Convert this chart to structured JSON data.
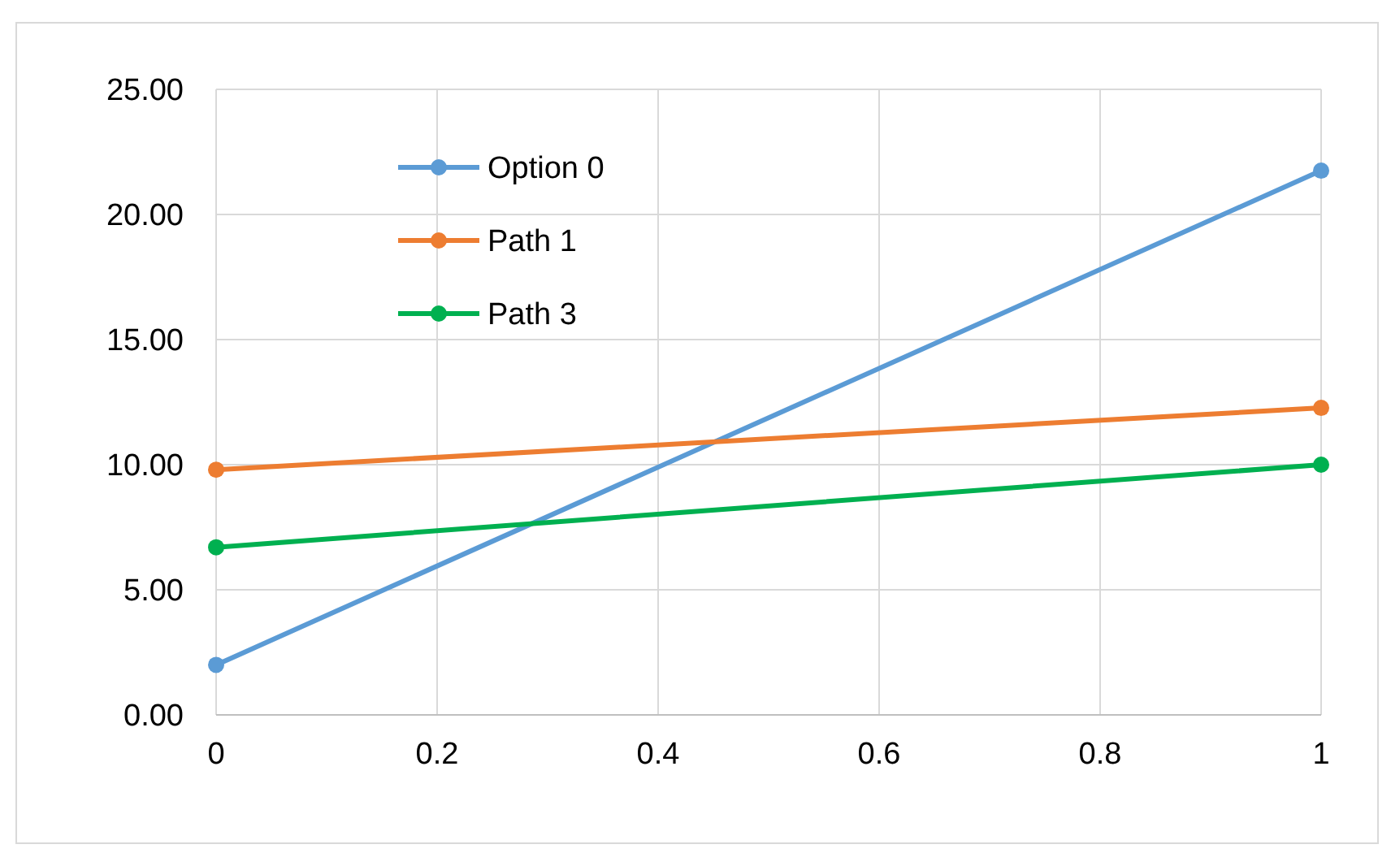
{
  "chart_data": {
    "type": "line",
    "x": [
      0,
      1
    ],
    "series": [
      {
        "name": "Option 0",
        "color": "#5b9bd5",
        "values": [
          2.0,
          21.75
        ]
      },
      {
        "name": "Path 1",
        "color": "#ed7d31",
        "values": [
          9.8,
          12.27
        ]
      },
      {
        "name": "Path 3",
        "color": "#00b050",
        "values": [
          6.7,
          10.0
        ]
      }
    ],
    "xlim": [
      0,
      1
    ],
    "xticks": [
      0,
      0.2,
      0.4,
      0.6,
      0.8,
      1
    ],
    "ylim": [
      0,
      25
    ],
    "yticks": [
      {
        "value": 0,
        "label": "0.00"
      },
      {
        "value": 5,
        "label": "5.00"
      },
      {
        "value": 10,
        "label": "10.00"
      },
      {
        "value": 15,
        "label": "15.00"
      },
      {
        "value": 20,
        "label": "20.00"
      },
      {
        "value": 25,
        "label": "25.00"
      }
    ],
    "grid": true,
    "legend": "top left",
    "marker": "circle",
    "line_style": "solid"
  }
}
